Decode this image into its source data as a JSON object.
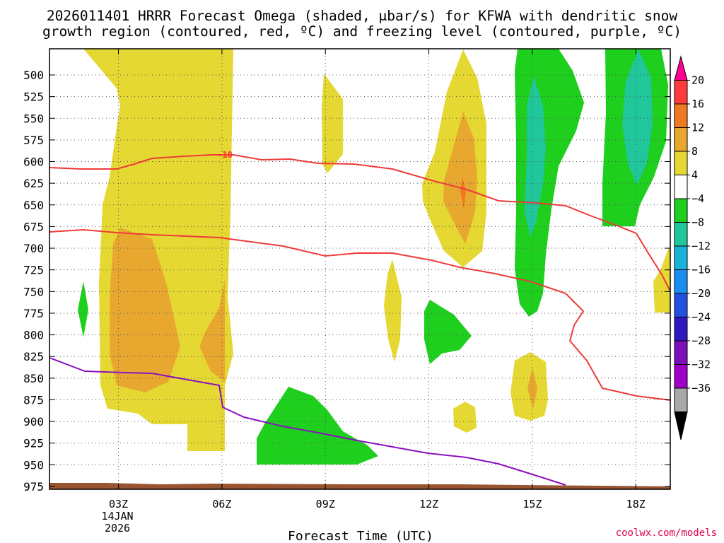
{
  "chart_data": {
    "type": "heatmap",
    "title_line1": "2026011401 HRRR Forecast Omega (shaded, μbar/s) for KFWA with dendritic snow",
    "title_line2": "growth region (contoured, red, ºC) and freezing level (contoured, purple, ºC)",
    "xlabel": "Forecast Time (UTC)",
    "credit": "coolwx.com/models",
    "x_date_label": [
      "14JAN",
      "2026"
    ],
    "x_range_hours": [
      1,
      19
    ],
    "x_ticks": [
      {
        "hour": 3,
        "label": "03Z"
      },
      {
        "hour": 6,
        "label": "06Z"
      },
      {
        "hour": 9,
        "label": "09Z"
      },
      {
        "hour": 12,
        "label": "12Z"
      },
      {
        "hour": 15,
        "label": "15Z"
      },
      {
        "hour": 18,
        "label": "18Z"
      }
    ],
    "y_ticks": [
      500,
      525,
      550,
      575,
      600,
      625,
      650,
      675,
      700,
      725,
      750,
      775,
      800,
      825,
      850,
      875,
      900,
      925,
      950,
      975
    ],
    "y_range_mb": [
      475,
      980
    ],
    "grid": true,
    "colorbar": {
      "colors": [
        "#ff0090",
        "#ff3a3a",
        "#ef7a20",
        "#e8a830",
        "#e6d832",
        "#ffffff",
        "#1ecf1e",
        "#1fc79a",
        "#18b4d8",
        "#1a8ef0",
        "#2050e0",
        "#3018c0",
        "#7a10b8",
        "#a000c8",
        "#a8a8a8",
        "#000000"
      ],
      "labels": [
        "20",
        "16",
        "12",
        "8",
        "4",
        "−4",
        "−8",
        "−12",
        "−16",
        "−20",
        "−24",
        "−28",
        "−32",
        "−36"
      ]
    },
    "dgz_contour_label": "-18",
    "surface_color": "#9a5530",
    "freezing_level_color": "#8a10c0",
    "dgz_color": "#ee3a3a"
  }
}
